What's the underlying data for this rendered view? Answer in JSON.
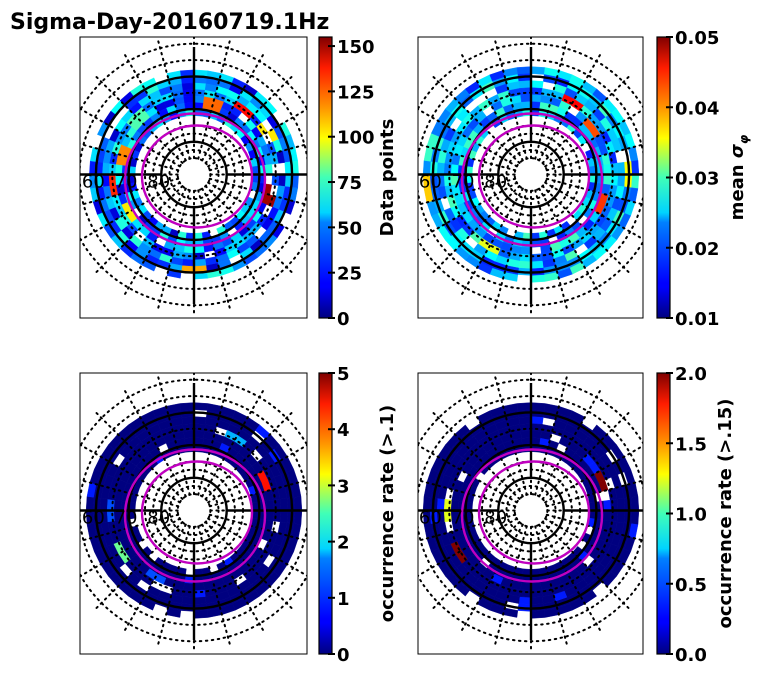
{
  "figure": {
    "title": "Sigma-Day-20160719.1Hz"
  },
  "chart_data": [
    {
      "type": "heatmap",
      "projection": "polar (magnetic latitude / local time)",
      "title": "",
      "colorbar_label": "Data points",
      "colormap": "jet",
      "clim": [
        0,
        155
      ],
      "colorbar_ticks": [
        "0",
        "25",
        "50",
        "75",
        "100",
        "125",
        "150"
      ],
      "colorbar_tick_values": [
        0,
        25,
        50,
        75,
        100,
        125,
        150
      ],
      "latitude_labels": [
        "60",
        "70",
        "80"
      ],
      "latitude_circles": [
        80,
        70,
        60,
        50
      ],
      "coverage_band_lat": [
        58,
        72
      ],
      "typical_value": 30,
      "hotspots": [
        {
          "mlt": 13,
          "lat": 68,
          "value": 120
        },
        {
          "mlt": 14.5,
          "lat": 65,
          "value": 135
        },
        {
          "mlt": 16,
          "lat": 64,
          "value": 100
        },
        {
          "mlt": 19,
          "lat": 66,
          "value": 150
        },
        {
          "mlt": 5.5,
          "lat": 65,
          "value": 130
        },
        {
          "mlt": 4,
          "lat": 67,
          "value": 100
        },
        {
          "mlt": 0,
          "lat": 61,
          "value": 110
        },
        {
          "mlt": 7,
          "lat": 68,
          "value": 115
        },
        {
          "mlt": 9,
          "lat": 66,
          "value": 70
        }
      ],
      "oval_boundaries": "magenta"
    },
    {
      "type": "heatmap",
      "projection": "polar (magnetic latitude / local time)",
      "colorbar_label": "mean σφ",
      "colormap": "jet",
      "clim": [
        0.01,
        0.05
      ],
      "colorbar_ticks": [
        "0.01",
        "0.02",
        "0.03",
        "0.04",
        "0.05"
      ],
      "colorbar_tick_values": [
        0.01,
        0.02,
        0.03,
        0.04,
        0.05
      ],
      "latitude_labels": [
        "60",
        "70",
        "80"
      ],
      "latitude_circles": [
        80,
        70,
        60,
        50
      ],
      "coverage_band_lat": [
        57,
        72
      ],
      "typical_value": 0.022,
      "hotspots": [
        {
          "mlt": 14,
          "lat": 64,
          "value": 0.045
        },
        {
          "mlt": 15.5,
          "lat": 66,
          "value": 0.042
        },
        {
          "mlt": 19.5,
          "lat": 66,
          "value": 0.043
        },
        {
          "mlt": 5.5,
          "lat": 58,
          "value": 0.037
        },
        {
          "mlt": 18,
          "lat": 60,
          "value": 0.035
        },
        {
          "mlt": 2,
          "lat": 64,
          "value": 0.034
        }
      ],
      "oval_boundaries": "magenta"
    },
    {
      "type": "heatmap",
      "projection": "polar (magnetic latitude / local time)",
      "colorbar_label": "occurrence rate (>.1)",
      "colormap": "jet",
      "clim": [
        0,
        5
      ],
      "colorbar_ticks": [
        "0",
        "1",
        "2",
        "3",
        "4",
        "5"
      ],
      "colorbar_tick_values": [
        0,
        1,
        2,
        3,
        4,
        5
      ],
      "latitude_labels": [
        "60",
        "70",
        "80"
      ],
      "latitude_circles": [
        80,
        70,
        60,
        50
      ],
      "coverage_band_lat": [
        57,
        72
      ],
      "typical_value": 0,
      "hotspots": [
        {
          "mlt": 16.5,
          "lat": 67,
          "value": 4.3
        },
        {
          "mlt": 4,
          "lat": 65,
          "value": 2.4
        },
        {
          "mlt": 2,
          "lat": 66,
          "value": 1.0
        },
        {
          "mlt": 6,
          "lat": 65,
          "value": 1.0
        },
        {
          "mlt": 14,
          "lat": 64,
          "value": 1.5
        }
      ],
      "oval_boundaries": "magenta"
    },
    {
      "type": "heatmap",
      "projection": "polar (magnetic latitude / local time)",
      "colorbar_label": "occurrence rate (>.15)",
      "colormap": "jet",
      "clim": [
        0,
        2
      ],
      "colorbar_ticks": [
        "0.0",
        "0.5",
        "1.0",
        "1.5",
        "2.0"
      ],
      "colorbar_tick_values": [
        0,
        0.5,
        1.0,
        1.5,
        2.0
      ],
      "latitude_labels": [
        "60",
        "70",
        "80"
      ],
      "latitude_circles": [
        80,
        70,
        60,
        50
      ],
      "coverage_band_lat": [
        57,
        72
      ],
      "typical_value": 0,
      "hotspots": [
        {
          "mlt": 16.5,
          "lat": 67,
          "value": 2.0
        },
        {
          "mlt": 4,
          "lat": 65,
          "value": 2.0
        },
        {
          "mlt": 6,
          "lat": 65,
          "value": 1.2
        }
      ],
      "oval_boundaries": "magenta"
    }
  ]
}
